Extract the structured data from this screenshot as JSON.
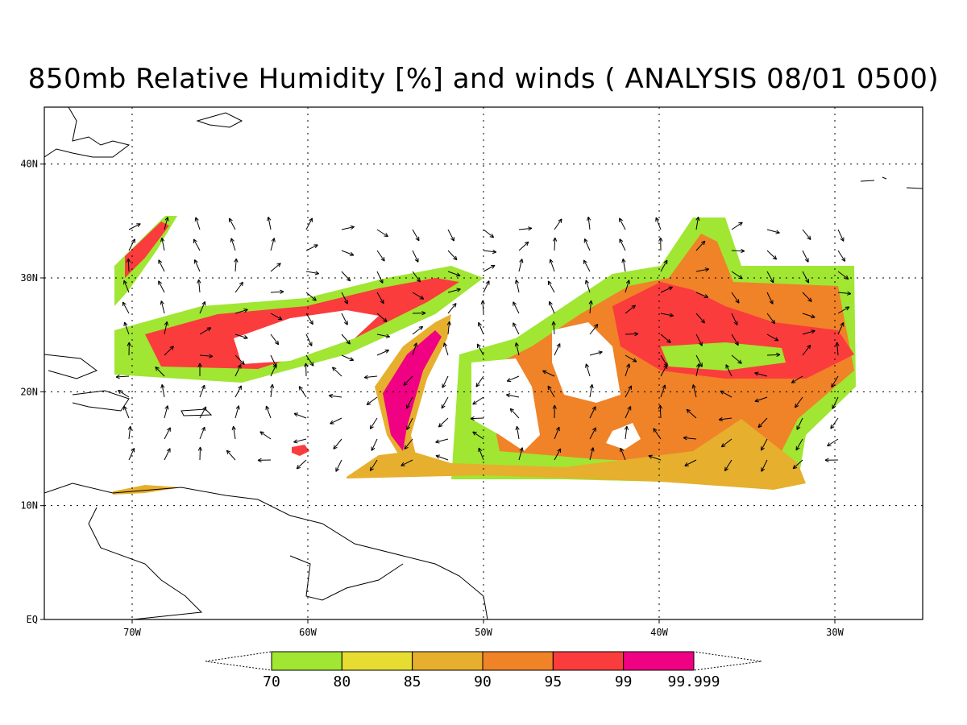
{
  "title": "850mb Relative Humidity [%] and winds ( ANALYSIS 08/01 0500)",
  "map": {
    "lon_range": [
      -75,
      -25
    ],
    "lat_range": [
      0,
      45
    ],
    "lat_ticks": [
      {
        "label": "EQ",
        "value": 0
      },
      {
        "label": "10N",
        "value": 10
      },
      {
        "label": "20N",
        "value": 20
      },
      {
        "label": "30N",
        "value": 30
      },
      {
        "label": "40N",
        "value": 40
      }
    ],
    "lon_ticks": [
      {
        "label": "70W",
        "value": -70
      },
      {
        "label": "60W",
        "value": -60
      },
      {
        "label": "50W",
        "value": -50
      },
      {
        "label": "40W",
        "value": -40
      },
      {
        "label": "30W",
        "value": -30
      }
    ],
    "grid": true
  },
  "colorbar": {
    "labels": [
      "70",
      "80",
      "85",
      "90",
      "95",
      "99",
      "99.999"
    ],
    "colors": [
      "#a0e632",
      "#e6dc32",
      "#e6af2d",
      "#f08228",
      "#fa3c3c",
      "#f00082"
    ]
  }
}
